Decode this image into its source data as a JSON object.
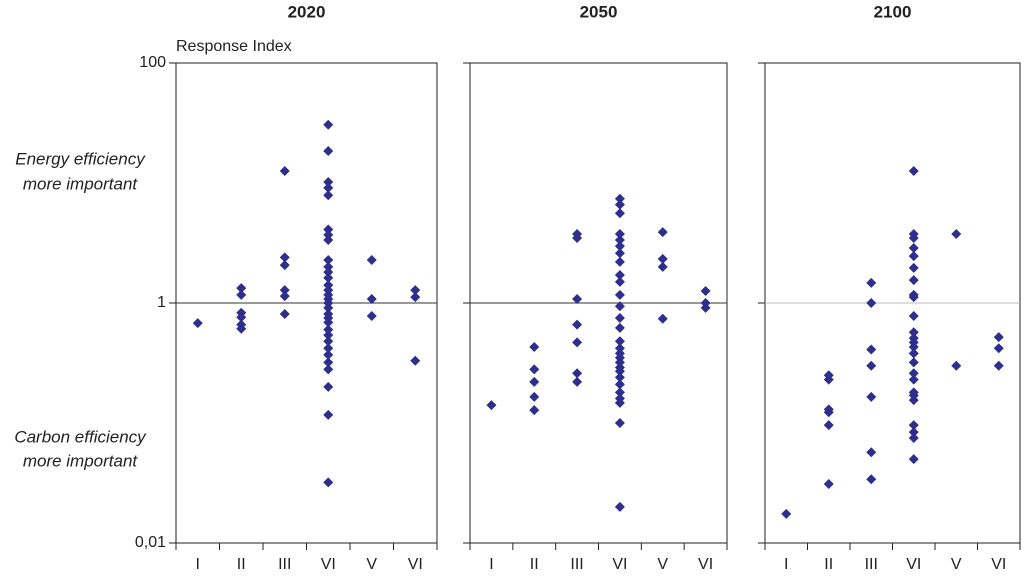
{
  "annotations": [
    [
      "Energy efficiency",
      "more important"
    ],
    [
      "Carbon efficiency",
      "more important"
    ]
  ],
  "chart_data": [
    {
      "type": "strip",
      "title": "2020",
      "y_label": "Response Index",
      "log_scale": true,
      "color": "#2e2f8c",
      "categories": [
        "I",
        "II",
        "III",
        "VI",
        "V",
        "VI"
      ],
      "values": [
        [
          0.68
        ],
        [
          1.33,
          1.17,
          0.83,
          0.76,
          0.66,
          0.61
        ],
        [
          12.6,
          2.4,
          2.07,
          1.28,
          1.14,
          0.81
        ],
        [
          30.6,
          18.5,
          10.2,
          9.1,
          7.9,
          4.1,
          3.7,
          3.35,
          2.28,
          2.0,
          1.81,
          1.62,
          1.41,
          1.28,
          1.17,
          1.08,
          1.0,
          0.91,
          0.81,
          0.75,
          0.69,
          0.6,
          0.54,
          0.48,
          0.42,
          0.37,
          0.32,
          0.28,
          0.2,
          0.117,
          0.032
        ],
        [
          2.28,
          1.08,
          0.78
        ],
        [
          1.28,
          1.12,
          0.33
        ]
      ],
      "ylim": [
        0.01,
        100
      ],
      "yticks": [
        {
          "value": 0.01,
          "label": "0,01"
        },
        1,
        100
      ],
      "hline": 1,
      "hline_color": "#333333"
    },
    {
      "type": "strip",
      "title": "2050",
      "log_scale": true,
      "color": "#2e2f8c",
      "categories": [
        "I",
        "II",
        "III",
        "VI",
        "V",
        "VI"
      ],
      "values": [
        [
          0.141
        ],
        [
          0.43,
          0.28,
          0.22,
          0.165,
          0.128
        ],
        [
          3.76,
          3.48,
          1.08,
          0.66,
          0.47,
          0.26,
          0.22
        ],
        [
          7.4,
          6.6,
          5.6,
          3.76,
          3.35,
          2.98,
          2.6,
          2.2,
          1.71,
          1.5,
          1.17,
          0.94,
          0.75,
          0.62,
          0.48,
          0.42,
          0.38,
          0.35,
          0.32,
          0.29,
          0.27,
          0.24,
          0.21,
          0.18,
          0.16,
          0.147,
          0.1,
          0.02
        ],
        [
          3.9,
          2.33,
          2.0,
          0.74
        ],
        [
          1.26,
          1.0,
          0.91
        ]
      ],
      "ylim": [
        0.01,
        100
      ],
      "yticks": [
        0.01,
        1,
        100
      ],
      "hline": 1,
      "hline_color": "#333333"
    },
    {
      "type": "strip",
      "title": "2100",
      "log_scale": true,
      "color": "#2e2f8c",
      "categories": [
        "I",
        "II",
        "III",
        "VI",
        "V",
        "VI"
      ],
      "values": [
        [
          0.0175
        ],
        [
          0.25,
          0.23,
          0.13,
          0.123,
          0.096,
          0.031
        ],
        [
          1.47,
          1.0,
          0.41,
          0.3,
          0.165,
          0.057,
          0.034
        ],
        [
          12.6,
          3.76,
          3.48,
          2.87,
          2.46,
          1.96,
          1.55,
          1.17,
          1.12,
          0.78,
          0.57,
          0.51,
          0.47,
          0.43,
          0.38,
          0.32,
          0.26,
          0.23,
          0.18,
          0.17,
          0.155,
          0.096,
          0.084,
          0.075,
          0.05
        ],
        [
          3.76,
          0.3
        ],
        [
          0.52,
          0.42,
          0.3
        ]
      ],
      "ylim": [
        0.01,
        100
      ],
      "yticks": [
        0.01,
        1,
        100
      ],
      "hline": 1,
      "hline_color": "#bbbbbb"
    }
  ]
}
